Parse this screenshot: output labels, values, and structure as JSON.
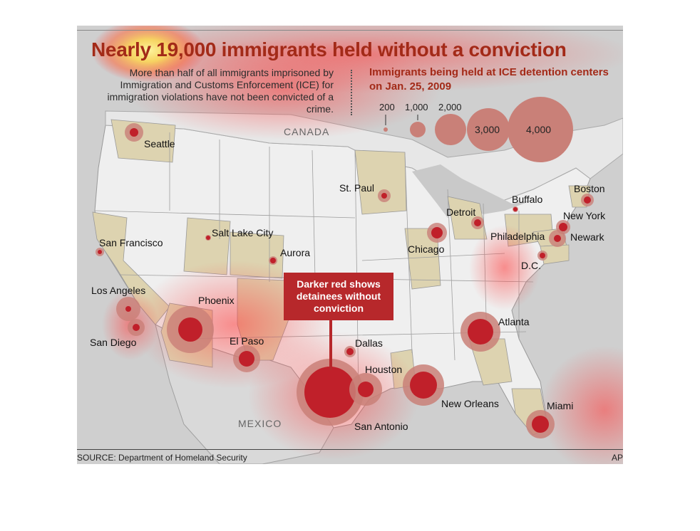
{
  "title": "Nearly 19,000 immigrants held without a conviction",
  "subtitle": "More than half of all immigrants imprisoned by Immigration and Customs Enforcement (ICE) for immigration violations have not been convicted of a crime.",
  "legend": {
    "title": "Immigrants being held at ICE detention centers on Jan. 25, 2009",
    "sizes": [
      {
        "label": "200",
        "value": 200
      },
      {
        "label": "1,000",
        "value": 1000
      },
      {
        "label": "2,000",
        "value": 2000
      },
      {
        "label": "3,000",
        "value": 3000
      },
      {
        "label": "4,000",
        "value": 4000
      }
    ]
  },
  "countries": {
    "canada": "CANADA",
    "mexico": "MEXICO"
  },
  "callout": "Darker red shows detainees without conviction",
  "source": "SOURCE: Department of Homeland Security",
  "credit": "AP",
  "colors": {
    "total": "#c98078",
    "no_conviction": "#c0202a",
    "state_highlight": "#ddd3b0",
    "land": "#efefef",
    "water": "#c9c9c9"
  },
  "cities": [
    {
      "name": "Seattle"
    },
    {
      "name": "San Francisco"
    },
    {
      "name": "Los Angeles"
    },
    {
      "name": "San Diego"
    },
    {
      "name": "Phoenix"
    },
    {
      "name": "Salt Lake City"
    },
    {
      "name": "Aurora"
    },
    {
      "name": "El Paso"
    },
    {
      "name": "Dallas"
    },
    {
      "name": "Houston"
    },
    {
      "name": "San Antonio"
    },
    {
      "name": "New Orleans"
    },
    {
      "name": "St. Paul"
    },
    {
      "name": "Chicago"
    },
    {
      "name": "Detroit"
    },
    {
      "name": "Buffalo"
    },
    {
      "name": "Boston"
    },
    {
      "name": "New York"
    },
    {
      "name": "Newark"
    },
    {
      "name": "Philadelphia"
    },
    {
      "name": "D.C."
    },
    {
      "name": "Atlanta"
    },
    {
      "name": "Miami"
    }
  ]
}
